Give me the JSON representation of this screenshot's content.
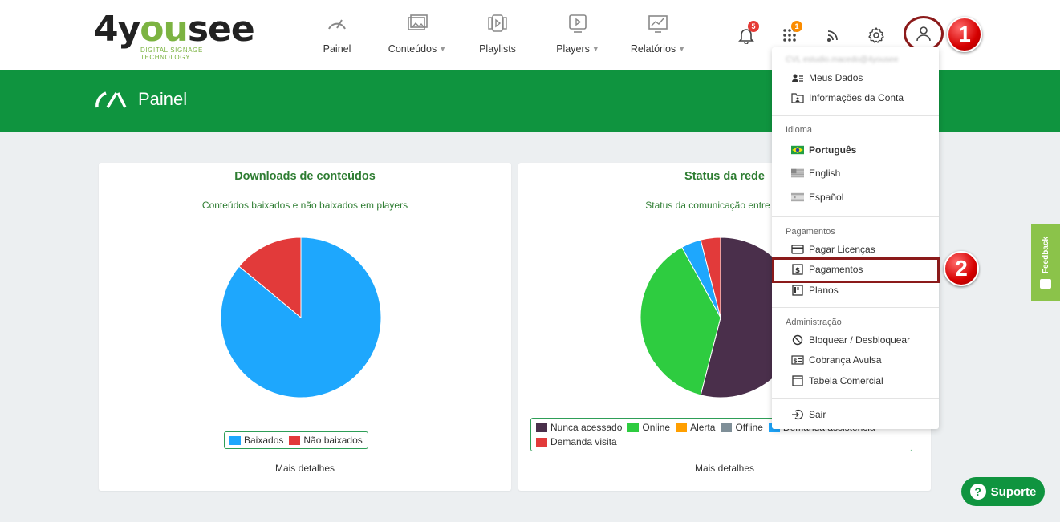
{
  "logo": {
    "main_a": "4y",
    "main_b": "ou",
    "main_c": "see",
    "tagline": "DIGITAL SIGNAGE TECHNOLOGY"
  },
  "nav": [
    {
      "label": "Painel",
      "dropdown": false,
      "icon": "gauge-icon"
    },
    {
      "label": "Conteúdos",
      "dropdown": true,
      "icon": "images-icon"
    },
    {
      "label": "Playlists",
      "dropdown": false,
      "icon": "playlist-icon"
    },
    {
      "label": "Players",
      "dropdown": true,
      "icon": "player-icon"
    },
    {
      "label": "Relatórios",
      "dropdown": true,
      "icon": "report-chart-icon"
    }
  ],
  "top_icons": {
    "notifications_badge": "5",
    "apps_badge": "1"
  },
  "steps": {
    "one": "1",
    "two": "2"
  },
  "banner": {
    "title": "Painel"
  },
  "downloads_card": {
    "title": "Downloads de conteúdos",
    "subtitle": "Conteúdos baixados e não baixados em players",
    "legend": [
      {
        "label": "Baixados",
        "color": "#1ea7fd"
      },
      {
        "label": "Não baixados",
        "color": "#e23a3a"
      }
    ],
    "more": "Mais detalhes"
  },
  "network_card": {
    "title": "Status da rede",
    "subtitle": "Status da comunicação entre players",
    "legend": [
      {
        "label": "Nunca acessado",
        "color": "#4a2f4b"
      },
      {
        "label": "Online",
        "color": "#2ecc40"
      },
      {
        "label": "Alerta",
        "color": "#ff9f00"
      },
      {
        "label": "Offline",
        "color": "#7f8f98"
      },
      {
        "label": "Demanda assistência",
        "color": "#1ea7fd"
      },
      {
        "label": "Demanda visita",
        "color": "#e23a3a"
      }
    ],
    "more": "Mais detalhes"
  },
  "chart_data": [
    {
      "type": "pie",
      "title": "Downloads de conteúdos",
      "categories": [
        "Baixados",
        "Não baixados"
      ],
      "values": [
        86,
        14
      ],
      "colors": [
        "#1ea7fd",
        "#e23a3a"
      ],
      "legend": "bottom"
    },
    {
      "type": "pie",
      "title": "Status da rede",
      "categories": [
        "Nunca acessado",
        "Online",
        "Alerta",
        "Offline",
        "Demanda assistência",
        "Demanda visita"
      ],
      "values": [
        54,
        38,
        0,
        0,
        4,
        4
      ],
      "colors": [
        "#4a2f4b",
        "#2ecc40",
        "#ff9f00",
        "#7f8f98",
        "#1ea7fd",
        "#e23a3a"
      ],
      "legend": "bottom"
    }
  ],
  "dropdown": {
    "email": "CVL estudio.macedo@4yousee",
    "meus_dados": "Meus Dados",
    "info_conta": "Informações da Conta",
    "idioma_head": "Idioma",
    "portugues": "Português",
    "english": "English",
    "espanol": "Español",
    "pagamentos_head": "Pagamentos",
    "pagar_licencas": "Pagar Licenças",
    "pagamentos": "Pagamentos",
    "planos": "Planos",
    "admin_head": "Administração",
    "bloquear": "Bloquear / Desbloquear",
    "cobranca": "Cobrança Avulsa",
    "tabela": "Tabela Comercial",
    "sair": "Sair"
  },
  "feedback": {
    "label": "Feedback"
  },
  "suporte": {
    "label": "Suporte",
    "icon_text": "?"
  }
}
